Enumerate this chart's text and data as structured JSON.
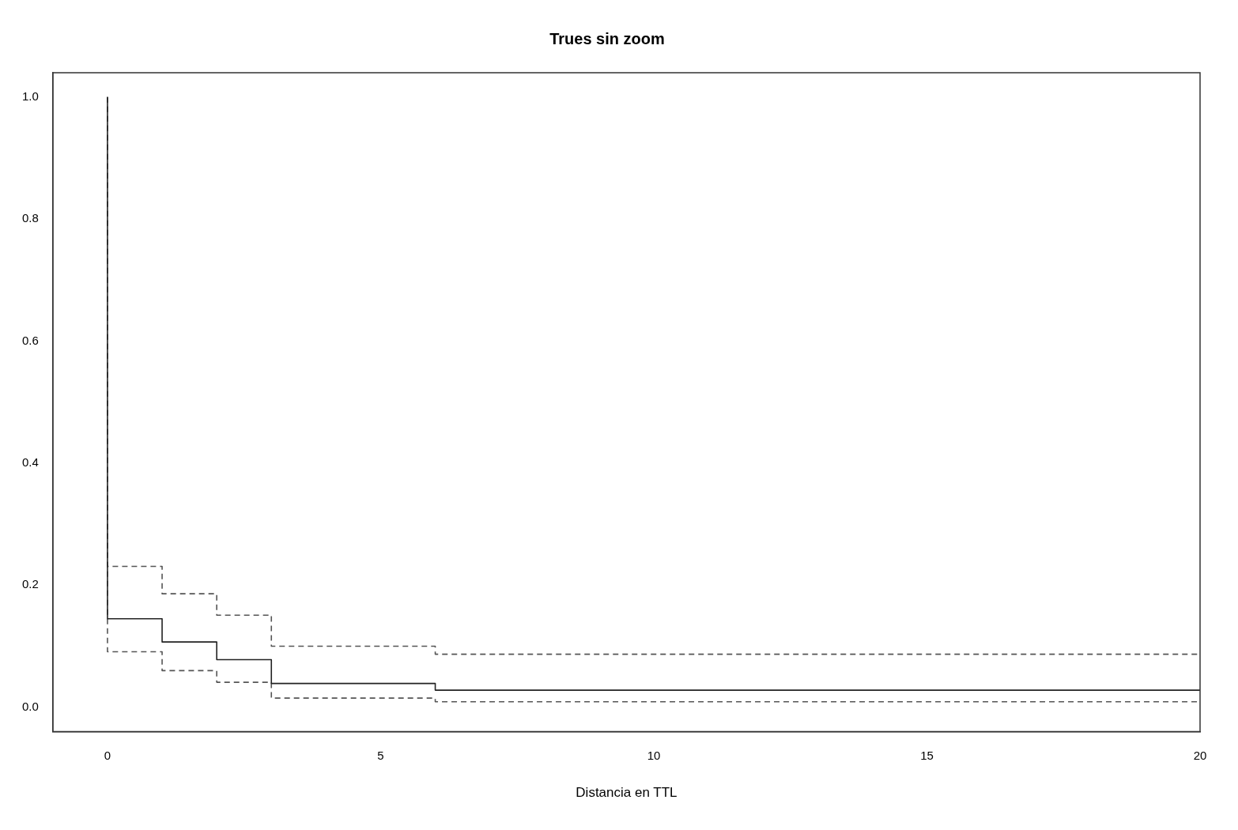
{
  "chart_data": {
    "type": "step",
    "title": "Trues sin zoom",
    "xlabel": "Distancia en TTL",
    "xlim": [
      -1,
      20
    ],
    "ylim": [
      -0.04,
      1.04
    ],
    "xticks": [
      0,
      5,
      10,
      15,
      20
    ],
    "yticks": [
      {
        "value": 0,
        "label": "0.0"
      },
      0.2,
      0.4,
      0.6,
      0.8,
      {
        "value": 1,
        "label": "1.0"
      }
    ],
    "series": [
      {
        "color": "#222222",
        "line_style": "solid",
        "x": [
          0,
          0,
          1,
          2,
          3,
          6,
          20
        ],
        "values": [
          1,
          0.145,
          0.107,
          0.078,
          0.039,
          0.028,
          0.028
        ]
      },
      {
        "color": "#555555",
        "line_style": "dashed",
        "x": [
          0,
          0,
          1,
          2,
          3,
          6,
          20
        ],
        "values": [
          1,
          0.231,
          0.186,
          0.151,
          0.1,
          0.087,
          0.087
        ]
      },
      {
        "color": "#555555",
        "line_style": "dashed",
        "x": [
          0,
          0,
          1,
          2,
          3,
          6,
          20
        ],
        "values": [
          1,
          0.091,
          0.06,
          0.041,
          0.015,
          0.009,
          0.009
        ]
      }
    ]
  }
}
